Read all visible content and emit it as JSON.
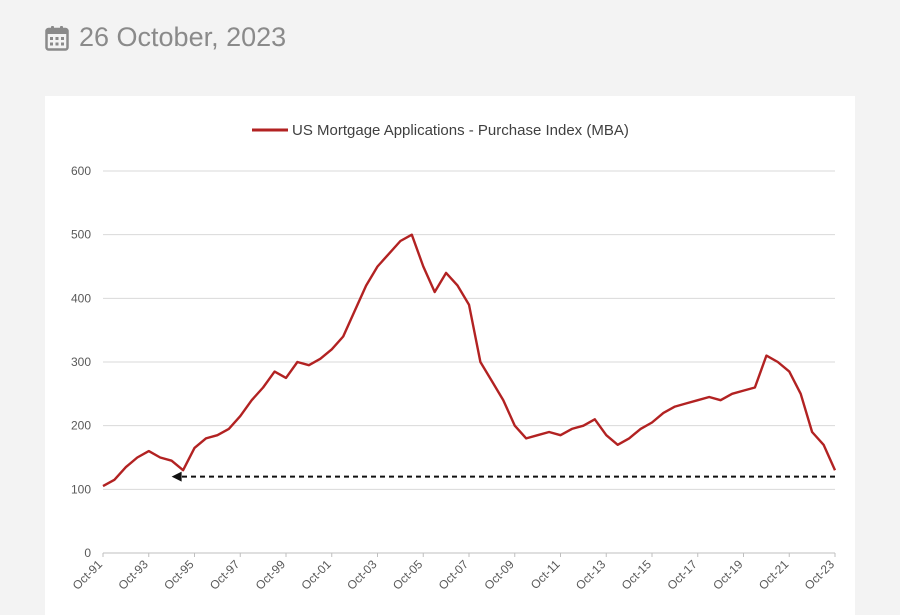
{
  "header": {
    "date": "26 October, 2023",
    "icon": "calendar-icon"
  },
  "chart_data": {
    "type": "line",
    "title": "",
    "xlabel": "",
    "ylabel": "",
    "ylim": [
      0,
      600
    ],
    "yticks": [
      "0",
      "100",
      "200",
      "300",
      "400",
      "500",
      "600"
    ],
    "xticks": [
      "Oct-91",
      "Oct-93",
      "Oct-95",
      "Oct-97",
      "Oct-99",
      "Oct-01",
      "Oct-03",
      "Oct-05",
      "Oct-07",
      "Oct-09",
      "Oct-11",
      "Oct-13",
      "Oct-15",
      "Oct-17",
      "Oct-19",
      "Oct-21",
      "Oct-23"
    ],
    "grid": "horizontal",
    "legend_position": "top-center",
    "series": [
      {
        "name": "US Mortgage Applications - Purchase Index (MBA)",
        "color": "#b22222",
        "x": [
          "Oct-91",
          "Apr-92",
          "Oct-92",
          "Apr-93",
          "Oct-93",
          "Apr-94",
          "Oct-94",
          "Apr-95",
          "Oct-95",
          "Apr-96",
          "Oct-96",
          "Apr-97",
          "Oct-97",
          "Apr-98",
          "Oct-98",
          "Apr-99",
          "Oct-99",
          "Apr-00",
          "Oct-00",
          "Apr-01",
          "Oct-01",
          "Apr-02",
          "Oct-02",
          "Apr-03",
          "Oct-03",
          "Apr-04",
          "Oct-04",
          "Apr-05",
          "Oct-05",
          "Apr-06",
          "Oct-06",
          "Apr-07",
          "Oct-07",
          "Apr-08",
          "Oct-08",
          "Apr-09",
          "Oct-09",
          "Apr-10",
          "Oct-10",
          "Apr-11",
          "Oct-11",
          "Apr-12",
          "Oct-12",
          "Apr-13",
          "Oct-13",
          "Apr-14",
          "Oct-14",
          "Apr-15",
          "Oct-15",
          "Apr-16",
          "Oct-16",
          "Apr-17",
          "Oct-17",
          "Apr-18",
          "Oct-18",
          "Apr-19",
          "Oct-19",
          "Apr-20",
          "Oct-20",
          "Apr-21",
          "Oct-21",
          "Apr-22",
          "Oct-22",
          "Apr-23",
          "Oct-23"
        ],
        "y": [
          105,
          115,
          135,
          150,
          160,
          150,
          145,
          130,
          165,
          180,
          185,
          195,
          215,
          240,
          260,
          285,
          275,
          300,
          295,
          305,
          320,
          340,
          380,
          420,
          450,
          470,
          490,
          500,
          450,
          410,
          440,
          420,
          390,
          300,
          270,
          240,
          200,
          180,
          185,
          190,
          185,
          195,
          200,
          210,
          185,
          170,
          180,
          195,
          205,
          220,
          230,
          235,
          240,
          245,
          240,
          250,
          255,
          260,
          310,
          300,
          285,
          250,
          190,
          170,
          130
        ]
      }
    ],
    "annotation": {
      "type": "dashed-arrow",
      "value": 120,
      "from": "Oct-23",
      "to": "Oct-94"
    }
  }
}
